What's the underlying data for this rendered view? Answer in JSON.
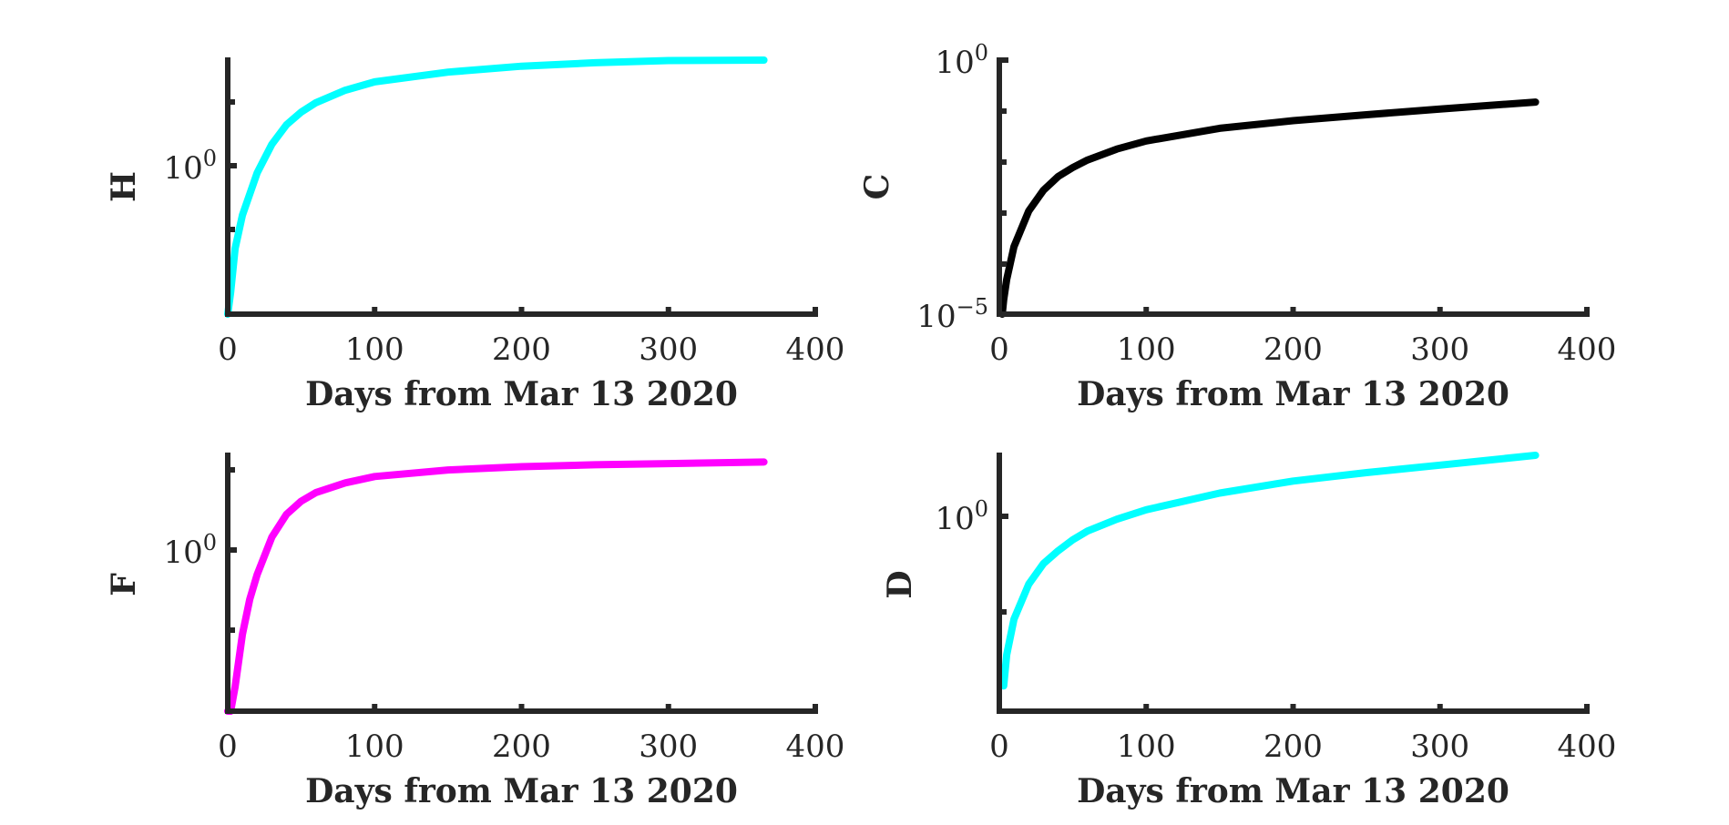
{
  "chart_data": [
    {
      "type": "line",
      "ylabel": "H",
      "xlabel": "Days from Mar 13 2020",
      "yscale": "log",
      "xlim": [
        0,
        400
      ],
      "xticks": [
        0,
        100,
        200,
        300,
        400
      ],
      "yticks": [
        {
          "exp": "0"
        }
      ],
      "series": [
        {
          "color": "#00FFFF",
          "x": [
            0,
            2,
            5,
            10,
            20,
            30,
            40,
            50,
            60,
            80,
            100,
            150,
            200,
            250,
            300,
            365
          ],
          "y": [
            0.013,
            0.06,
            0.2,
            0.5,
            1.6,
            3.5,
            6,
            8.5,
            11,
            15.5,
            19.5,
            25.5,
            30,
            33,
            35,
            38
          ]
        }
      ]
    },
    {
      "type": "line",
      "ylabel": "C",
      "xlabel": "Days from Mar 13 2020",
      "yscale": "log",
      "xlim": [
        0,
        400
      ],
      "xticks": [
        0,
        100,
        200,
        300,
        400
      ],
      "yticks": [
        {
          "exp": "0"
        },
        {
          "exp": "−5"
        }
      ],
      "series": [
        {
          "color": "#000000",
          "x": [
            2,
            3,
            5,
            10,
            20,
            30,
            40,
            50,
            60,
            80,
            100,
            150,
            200,
            250,
            300,
            365
          ],
          "y": [
            1e-05,
            2e-05,
            5e-05,
            0.00022,
            0.0011,
            0.0028,
            0.0052,
            0.0078,
            0.011,
            0.018,
            0.026,
            0.046,
            0.065,
            0.085,
            0.11,
            0.15
          ]
        }
      ]
    },
    {
      "type": "line",
      "ylabel": "F",
      "xlabel": "Days from Mar 13 2020",
      "yscale": "log",
      "xlim": [
        0,
        400
      ],
      "xticks": [
        0,
        100,
        200,
        300,
        400
      ],
      "yticks": [
        {
          "exp": "0"
        }
      ],
      "series": [
        {
          "color": "#FF00FF",
          "x": [
            0,
            2,
            5,
            10,
            15,
            20,
            30,
            40,
            50,
            60,
            80,
            100,
            150,
            200,
            250,
            300,
            365
          ],
          "y": [
            0.0025,
            0.01,
            0.03,
            0.13,
            0.35,
            0.7,
            2,
            3.8,
            5.5,
            7,
            9.2,
            11,
            13.2,
            14.5,
            15.3,
            15.8,
            16.5
          ]
        }
      ]
    },
    {
      "type": "line",
      "ylabel": "D",
      "xlabel": "Days from Mar 13 2020",
      "yscale": "log",
      "xlim": [
        0,
        400
      ],
      "xticks": [
        0,
        100,
        200,
        300,
        400
      ],
      "yticks": [
        {
          "exp": "0"
        }
      ],
      "series": [
        {
          "color": "#00FFFF",
          "x": [
            3,
            5,
            10,
            20,
            30,
            40,
            50,
            60,
            80,
            100,
            150,
            200,
            250,
            300,
            365
          ],
          "y": [
            0.0021,
            0.006,
            0.02,
            0.065,
            0.13,
            0.2,
            0.29,
            0.39,
            0.58,
            0.8,
            1.4,
            2.1,
            2.8,
            3.6,
            5.2
          ]
        }
      ]
    }
  ]
}
